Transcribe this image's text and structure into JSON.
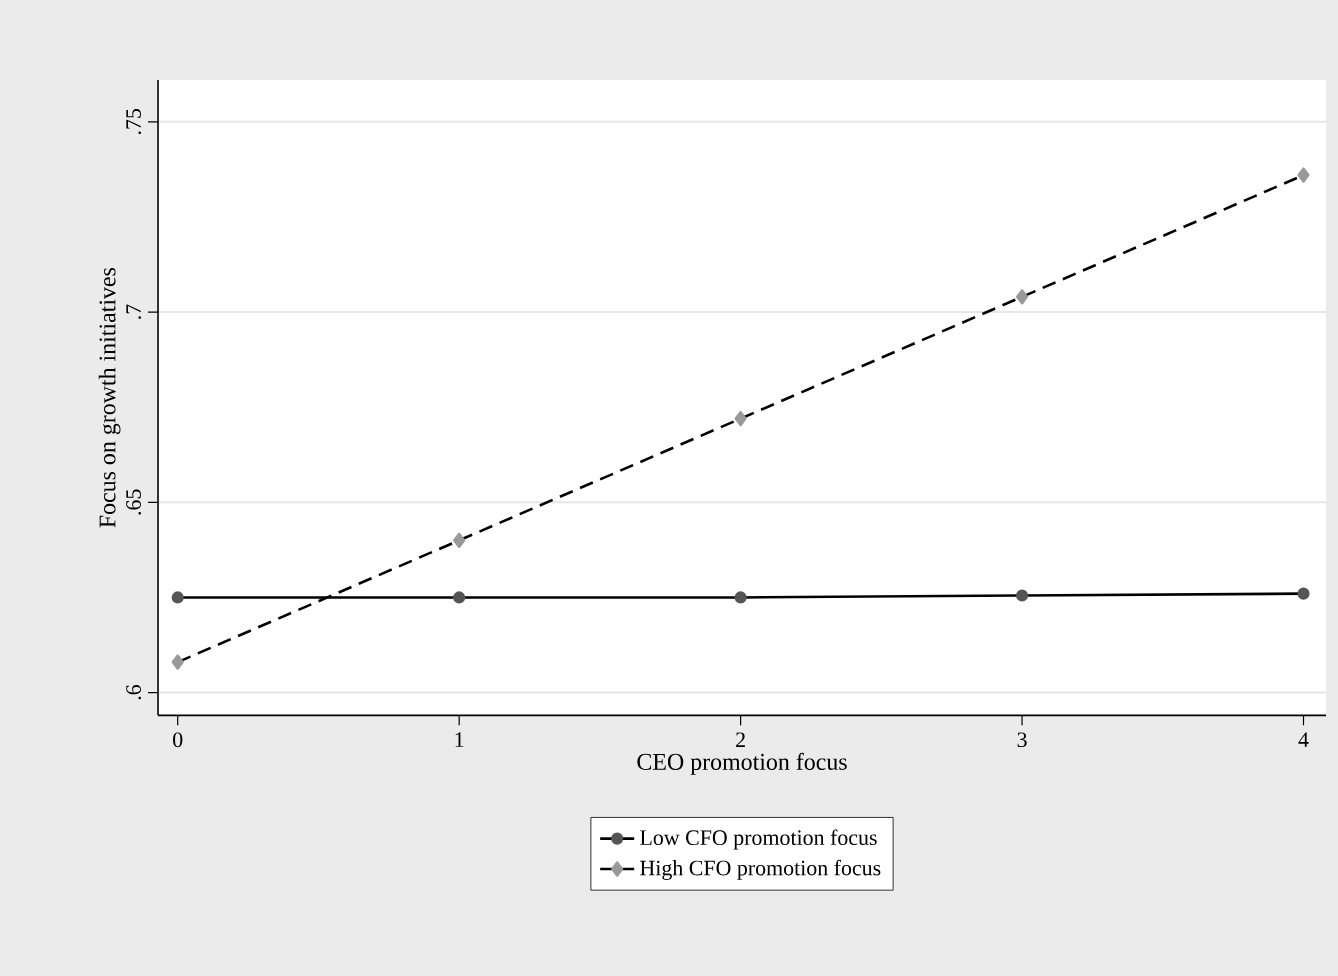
{
  "chart_data": {
    "type": "line",
    "xlabel": "CEO promotion focus",
    "ylabel": "Focus on growth initiatives",
    "x": [
      0,
      1,
      2,
      3,
      4
    ],
    "series": [
      {
        "name": "Low CFO promotion focus",
        "color": "#555555",
        "marker": "circle",
        "line_style": "solid",
        "values": [
          0.625,
          0.625,
          0.625,
          0.6255,
          0.626
        ]
      },
      {
        "name": "High CFO promotion focus",
        "color": "#999999",
        "marker": "diamond",
        "line_style": "dashed",
        "values": [
          0.608,
          0.64,
          0.672,
          0.704,
          0.736
        ]
      }
    ],
    "xlim": [
      -0.07,
      4.08
    ],
    "xticks": [
      0,
      1,
      2,
      3,
      4
    ],
    "ylim": [
      0.594,
      0.761
    ],
    "yticks": [
      {
        "value": 0.6,
        "label": ".6"
      },
      {
        "value": 0.65,
        "label": ".65"
      },
      {
        "value": 0.7,
        "label": ".7"
      },
      {
        "value": 0.75,
        "label": ".75"
      }
    ],
    "grid": "y",
    "legend": "bottom"
  }
}
